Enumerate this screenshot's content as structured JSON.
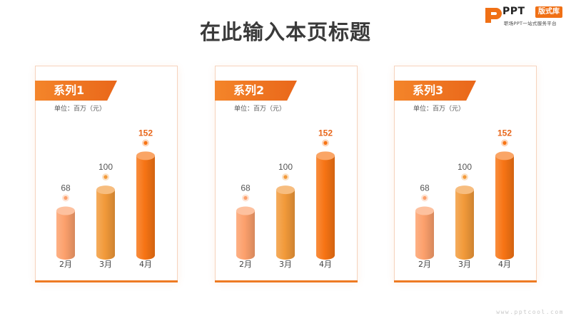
{
  "page": {
    "title": "在此输入本页标题",
    "watermark": "www.pptcool.com"
  },
  "logo": {
    "brand": "PPT",
    "badge": "版式库",
    "tagline": "职场PPT一站式服务平台",
    "color": "#f07015"
  },
  "panels": [
    {
      "series_title": "系列1",
      "unit": "单位：百万（元）"
    },
    {
      "series_title": "系列2",
      "unit": "单位：百万（元）"
    },
    {
      "series_title": "系列3",
      "unit": "单位：百万（元）"
    }
  ],
  "chart_data": [
    {
      "type": "bar",
      "title": "系列1",
      "ylabel": "单位：百万（元）",
      "categories": [
        "2月",
        "3月",
        "4月"
      ],
      "values": [
        68,
        100,
        152
      ],
      "ylim": [
        0,
        160
      ],
      "highlight_index": 2,
      "colors": [
        "#fca06c",
        "#f29a3a",
        "#f77414"
      ]
    },
    {
      "type": "bar",
      "title": "系列2",
      "ylabel": "单位：百万（元）",
      "categories": [
        "2月",
        "3月",
        "4月"
      ],
      "values": [
        68,
        100,
        152
      ],
      "ylim": [
        0,
        160
      ],
      "highlight_index": 2,
      "colors": [
        "#fca06c",
        "#f29a3a",
        "#f77414"
      ]
    },
    {
      "type": "bar",
      "title": "系列3",
      "ylabel": "单位：百万（元）",
      "categories": [
        "2月",
        "3月",
        "4月"
      ],
      "values": [
        68,
        100,
        152
      ],
      "ylim": [
        0,
        160
      ],
      "highlight_index": 2,
      "colors": [
        "#fca06c",
        "#f29a3a",
        "#f77414"
      ]
    }
  ]
}
